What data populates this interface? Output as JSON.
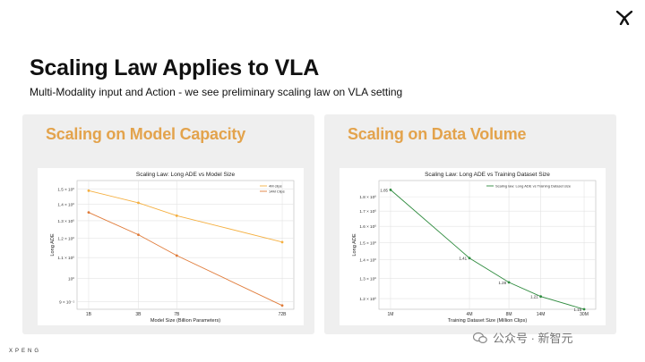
{
  "slide": {
    "title": "Scaling Law Applies to VLA",
    "subtitle": "Multi-Modality input and Action - we see preliminary scaling law on VLA setting",
    "brand": "XPENG",
    "watermark": "公众号 · 新智元"
  },
  "panels": [
    {
      "heading": "Scaling on Model Capacity"
    },
    {
      "heading": "Scaling on Data Volume"
    }
  ],
  "colors": {
    "heading": "#e3a34c",
    "series_4m": "#f5b041",
    "series_14m": "#e07b39",
    "series_data": "#2e8b3e"
  },
  "chart_data": [
    {
      "type": "line",
      "title": "Scaling Law: Long ADE vs Model Size",
      "xlabel": "Model Size (Billion Parameters)",
      "ylabel": "Long ADE",
      "x_scale": "log",
      "y_scale": "log",
      "categories": [
        "1B",
        "3B",
        "7B",
        "72B"
      ],
      "x": [
        1,
        3,
        7,
        72
      ],
      "ylim": [
        0.87,
        1.56
      ],
      "yticks": [
        0.9,
        1.0,
        1.1,
        1.2,
        1.3,
        1.4,
        1.5
      ],
      "ytick_labels": [
        "9 × 10⁻¹",
        "10⁰",
        "1.1 × 10⁰",
        "1.2 × 10⁰",
        "1.3 × 10⁰",
        "1.4 × 10⁰",
        "1.5 × 10⁰"
      ],
      "series": [
        {
          "name": "4M clips",
          "values": [
            1.49,
            1.41,
            1.33,
            1.18
          ]
        },
        {
          "name": "14M Clips",
          "values": [
            1.35,
            1.22,
            1.11,
            0.885
          ]
        }
      ],
      "legend": "top-right",
      "grid": true
    },
    {
      "type": "line",
      "title": "Scaling Law: Long ADE vs Training Dataset Size",
      "xlabel": "Training Dataset Size (Million Clips)",
      "ylabel": "Long ADE",
      "x_scale": "log",
      "y_scale": "log",
      "categories": [
        "1M",
        "4M",
        "8M",
        "14M",
        "30M"
      ],
      "x": [
        1,
        4,
        8,
        14,
        30
      ],
      "ylim": [
        1.15,
        1.92
      ],
      "yticks": [
        1.2,
        1.3,
        1.4,
        1.5,
        1.6,
        1.7,
        1.8
      ],
      "ytick_labels": [
        "1.2 × 10⁰",
        "1.3 × 10⁰",
        "1.4 × 10⁰",
        "1.5 × 10⁰",
        "1.6 × 10⁰",
        "1.7 × 10⁰",
        "1.8 × 10⁰"
      ],
      "series": [
        {
          "name": "Scaling law: Long ADE vs Training Dataset size",
          "values": [
            1.85,
            1.41,
            1.28,
            1.21,
            1.15
          ],
          "labels": [
            "1.85",
            "1.41",
            "1.28",
            "1.21",
            "1.15"
          ]
        }
      ],
      "legend": "top-right",
      "grid": true
    }
  ]
}
